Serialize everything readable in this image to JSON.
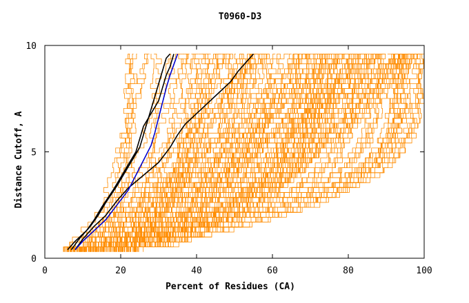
{
  "chart_data": {
    "type": "line",
    "title": "T0960-D3",
    "xlabel": "Percent of Residues (CA)",
    "ylabel": "Distance Cutoff, A",
    "xlim": [
      0,
      100
    ],
    "ylim": [
      0,
      10
    ],
    "x_ticks": [
      "0",
      "20",
      "40",
      "60",
      "80",
      "100"
    ],
    "y_ticks": [
      "0",
      "5",
      "10"
    ],
    "grid": false,
    "legend": "none",
    "colors": {
      "background_models": "#ff8c00",
      "black_models": "#000000",
      "blue_model": "#0000cc"
    },
    "highlight_series": [
      {
        "color": "#000000",
        "points": [
          [
            7,
            0.4
          ],
          [
            9,
            0.9
          ],
          [
            12,
            1.5
          ],
          [
            14,
            2.0
          ],
          [
            16,
            2.6
          ],
          [
            19,
            3.4
          ],
          [
            21,
            4.0
          ],
          [
            23,
            4.6
          ],
          [
            25,
            5.2
          ],
          [
            26,
            5.8
          ],
          [
            27,
            6.4
          ],
          [
            28,
            7.0
          ],
          [
            29,
            7.6
          ],
          [
            30,
            8.2
          ],
          [
            31,
            8.8
          ],
          [
            32,
            9.4
          ],
          [
            33,
            9.6
          ]
        ]
      },
      {
        "color": "#000000",
        "points": [
          [
            6,
            0.4
          ],
          [
            8,
            0.8
          ],
          [
            11,
            1.3
          ],
          [
            13,
            1.8
          ],
          [
            15,
            2.4
          ],
          [
            18,
            3.2
          ],
          [
            20,
            3.8
          ],
          [
            22,
            4.4
          ],
          [
            24,
            5.0
          ],
          [
            25,
            5.6
          ],
          [
            26,
            6.2
          ],
          [
            28,
            6.8
          ],
          [
            30,
            7.4
          ],
          [
            31,
            8.0
          ],
          [
            32,
            8.6
          ],
          [
            33,
            9.0
          ],
          [
            34,
            9.6
          ]
        ]
      },
      {
        "color": "#000000",
        "points": [
          [
            8,
            0.4
          ],
          [
            10,
            0.9
          ],
          [
            13,
            1.5
          ],
          [
            16,
            2.0
          ],
          [
            19,
            2.7
          ],
          [
            22,
            3.3
          ],
          [
            26,
            3.9
          ],
          [
            30,
            4.5
          ],
          [
            33,
            5.2
          ],
          [
            35,
            5.8
          ],
          [
            37,
            6.3
          ],
          [
            40,
            6.8
          ],
          [
            43,
            7.3
          ],
          [
            46,
            7.8
          ],
          [
            49,
            8.3
          ],
          [
            51,
            8.8
          ],
          [
            53,
            9.2
          ],
          [
            55,
            9.6
          ]
        ]
      },
      {
        "color": "#0000cc",
        "points": [
          [
            8,
            0.4
          ],
          [
            10,
            0.8
          ],
          [
            13,
            1.3
          ],
          [
            16,
            1.8
          ],
          [
            19,
            2.5
          ],
          [
            22,
            3.2
          ],
          [
            24,
            3.9
          ],
          [
            26,
            4.6
          ],
          [
            28,
            5.3
          ],
          [
            29,
            5.9
          ],
          [
            30,
            6.6
          ],
          [
            31,
            7.3
          ],
          [
            32,
            8.0
          ],
          [
            33,
            8.6
          ],
          [
            34,
            9.1
          ],
          [
            35,
            9.6
          ]
        ]
      }
    ]
  }
}
